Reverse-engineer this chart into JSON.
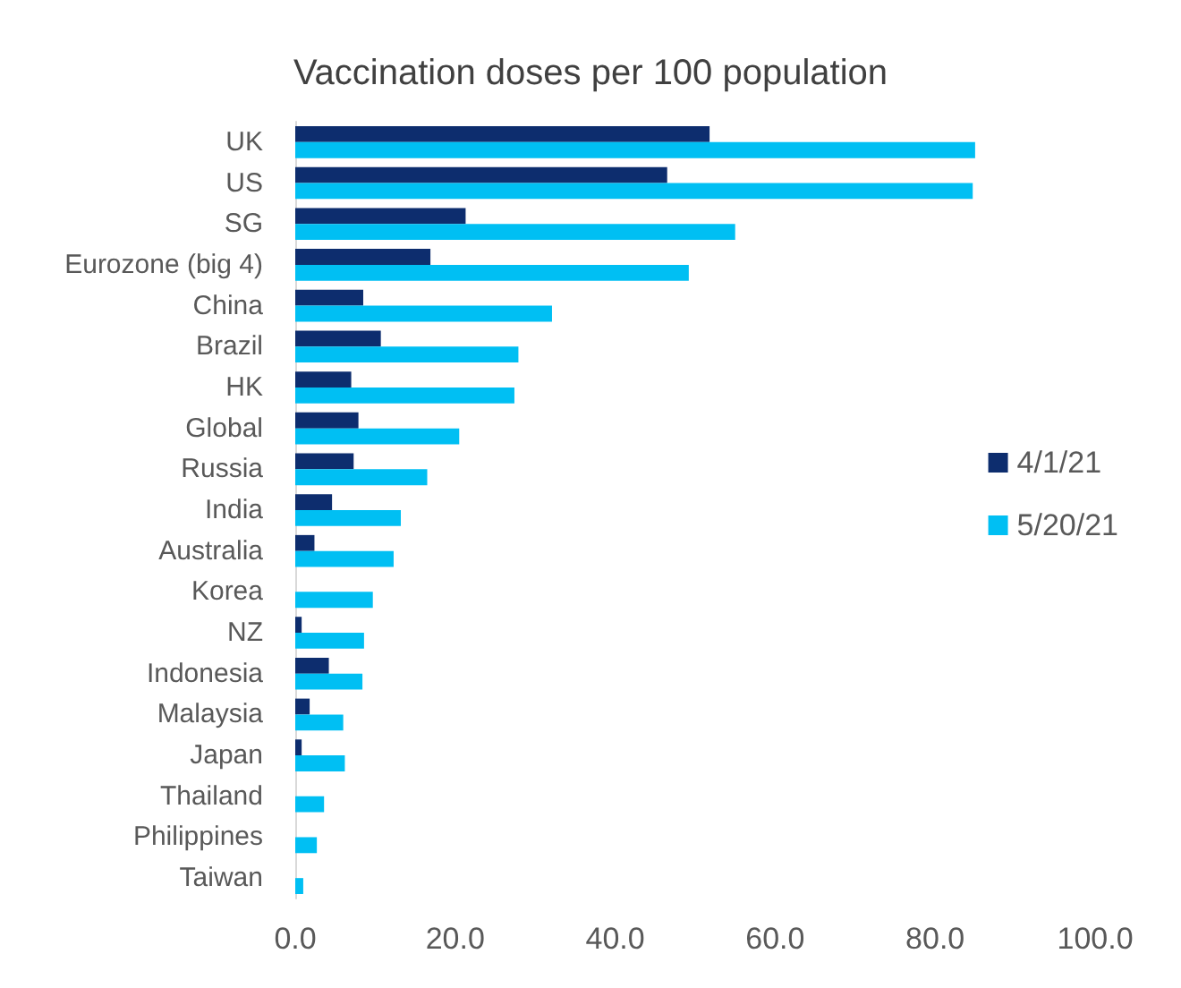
{
  "chart_data": {
    "type": "bar",
    "orientation": "horizontal",
    "title": "Vaccination doses per 100 population",
    "categories": [
      "UK",
      "US",
      "SG",
      "Eurozone (big 4)",
      "China",
      "Brazil",
      "HK",
      "Global",
      "Russia",
      "India",
      "Australia",
      "Korea",
      "NZ",
      "Indonesia",
      "Malaysia",
      "Japan",
      "Thailand",
      "Philippines",
      "Taiwan"
    ],
    "series": [
      {
        "name": "4/1/21",
        "color": "#0d2d6e",
        "values": [
          51.8,
          46.5,
          21.3,
          16.9,
          8.5,
          10.7,
          7.0,
          7.9,
          7.3,
          4.6,
          2.4,
          null,
          0.8,
          4.2,
          1.8,
          0.8,
          null,
          null,
          null
        ]
      },
      {
        "name": "5/20/21",
        "color": "#00bff3",
        "values": [
          85.0,
          84.7,
          55.0,
          49.2,
          32.1,
          27.9,
          27.4,
          20.5,
          16.5,
          13.2,
          12.3,
          9.7,
          8.6,
          8.4,
          6.0,
          6.2,
          3.6,
          2.7,
          1.0
        ]
      }
    ],
    "xlim": [
      0,
      100
    ],
    "xticks": [
      {
        "value": 0,
        "label": "0.0"
      },
      {
        "value": 20,
        "label": "20.0"
      },
      {
        "value": 40,
        "label": "40.0"
      },
      {
        "value": 60,
        "label": "60.0"
      },
      {
        "value": 80,
        "label": "80.0"
      },
      {
        "value": 100,
        "label": "100.0"
      }
    ],
    "grid": false,
    "legend": "right"
  }
}
